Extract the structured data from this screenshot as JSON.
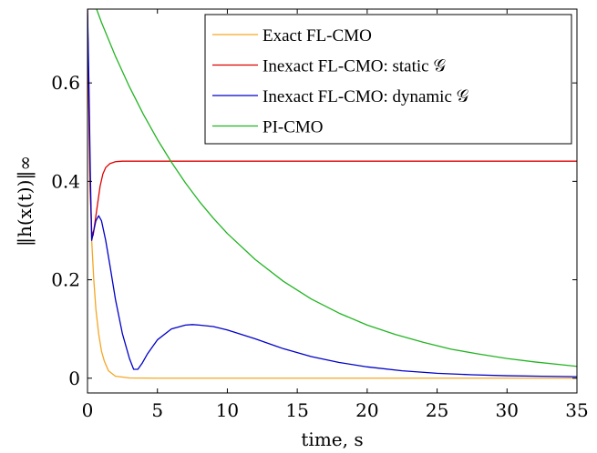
{
  "chart_data": {
    "type": "line",
    "xlabel": "time, s",
    "ylabel": "‖h(x(t))‖∞",
    "xlim": [
      0,
      35
    ],
    "ylim": [
      -0.03,
      0.75
    ],
    "xticks": [
      0,
      5,
      10,
      15,
      20,
      25,
      30,
      35
    ],
    "yticks": [
      0,
      0.2,
      0.4,
      0.6
    ],
    "ytick_labels": [
      "0",
      "0.2",
      "0.4",
      "0.6"
    ],
    "grid": false,
    "legend_position": "top-right",
    "series": [
      {
        "name": "Exact FL-CMO",
        "color": "#f5a623",
        "x": [
          0,
          0.15,
          0.3,
          0.45,
          0.6,
          0.8,
          1.0,
          1.2,
          1.5,
          2.0,
          3.0,
          5.0,
          10,
          20,
          35
        ],
        "y": [
          0.75,
          0.42,
          0.28,
          0.2,
          0.14,
          0.09,
          0.055,
          0.035,
          0.015,
          0.004,
          0.0005,
          0.0,
          0.0,
          0.0,
          0.0
        ]
      },
      {
        "name": "Inexact FL-CMO: static 𝒢",
        "color": "#e00000",
        "x": [
          0,
          0.1,
          0.2,
          0.3,
          0.4,
          0.5,
          0.7,
          0.9,
          1.1,
          1.3,
          1.6,
          2.0,
          2.5,
          3,
          5,
          10,
          20,
          35
        ],
        "y": [
          0.75,
          0.55,
          0.38,
          0.3,
          0.29,
          0.31,
          0.35,
          0.39,
          0.415,
          0.428,
          0.436,
          0.44,
          0.441,
          0.441,
          0.441,
          0.441,
          0.441,
          0.441
        ]
      },
      {
        "name": "Inexact FL-CMO: dynamic 𝒢",
        "color": "#0000c8",
        "x": [
          0,
          0.1,
          0.2,
          0.3,
          0.45,
          0.6,
          0.8,
          1.0,
          1.3,
          1.6,
          2.0,
          2.5,
          3.0,
          3.3,
          3.6,
          3.9,
          4.3,
          5.0,
          6.0,
          7.0,
          7.5,
          8.0,
          9.0,
          10,
          12,
          14,
          16,
          18,
          20,
          22.5,
          25,
          27.5,
          30,
          32.5,
          35
        ],
        "y": [
          0.75,
          0.6,
          0.42,
          0.28,
          0.3,
          0.32,
          0.33,
          0.32,
          0.28,
          0.23,
          0.16,
          0.09,
          0.04,
          0.018,
          0.018,
          0.03,
          0.05,
          0.078,
          0.1,
          0.108,
          0.109,
          0.108,
          0.105,
          0.098,
          0.08,
          0.06,
          0.044,
          0.032,
          0.023,
          0.015,
          0.01,
          0.007,
          0.005,
          0.004,
          0.003
        ]
      },
      {
        "name": "PI-CMO",
        "color": "#22b422",
        "x": [
          0,
          1,
          2,
          3,
          4,
          5,
          6,
          7,
          8,
          9,
          10,
          12,
          14,
          16,
          18,
          20,
          22,
          24,
          26,
          28,
          30,
          32,
          34,
          35
        ],
        "y": [
          0.8,
          0.723,
          0.654,
          0.592,
          0.536,
          0.485,
          0.439,
          0.397,
          0.359,
          0.325,
          0.294,
          0.241,
          0.197,
          0.161,
          0.132,
          0.108,
          0.089,
          0.073,
          0.059,
          0.049,
          0.04,
          0.033,
          0.027,
          0.024
        ]
      }
    ]
  }
}
